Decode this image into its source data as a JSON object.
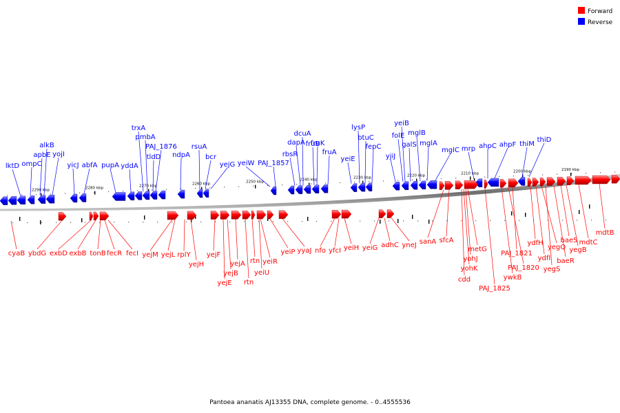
{
  "legend": {
    "forward": {
      "label": "Forward",
      "color": "#ff0000"
    },
    "reverse": {
      "label": "Reverse",
      "color": "#0000ff"
    }
  },
  "caption": "Pantoea ananatis AJ13355 DNA, complete genome. - 0..4555536",
  "ticks": [
    "2190 kbp",
    "2200 kbp",
    "2210 kbp",
    "2220 kbp",
    "2230 kbp",
    "2240 kbp",
    "2250 kbp",
    "2260 kbp",
    "2270 kbp",
    "2280 kbp",
    "2290 kbp"
  ],
  "reverse_genes": [
    "lktD",
    "ompC",
    "apbE",
    "alkB",
    "yojI",
    "yicJ",
    "abfA",
    "pupA",
    "yddA",
    "trxA",
    "pmbA",
    "tldD",
    "PAJ_1876",
    "ndpA",
    "rsuA",
    "bcr",
    "yejG",
    "yeiW",
    "PAJ_1857",
    "rbsR",
    "dapA",
    "dcuA",
    "fruB",
    "fruK",
    "fruA",
    "yeiE",
    "lysP",
    "btuC",
    "fepC",
    "yjiJ",
    "folE",
    "yeiB",
    "galS",
    "mglB",
    "mglA",
    "mglC",
    "mrp",
    "ahpC",
    "ahpF",
    "thiM",
    "thiD"
  ],
  "forward_genes": [
    "cyaB",
    "ybdG",
    "exbD",
    "exbB",
    "tonB",
    "fecR",
    "fecI",
    "yejM",
    "yejL",
    "rplY",
    "yejH",
    "yejF",
    "yejE",
    "yejB",
    "yejA",
    "rtn",
    "rtn",
    "yeiU",
    "yeiR",
    "yeiP",
    "yyaJ",
    "nfo",
    "yfcI",
    "yeiH",
    "yeiG",
    "adhC",
    "yneJ",
    "sanA",
    "sfcA",
    "cdd",
    "yohK",
    "yohJ",
    "metG",
    "PAJ_1825",
    "ywkB",
    "PAJ_1820",
    "PAJ_1821",
    "ydfH",
    "ydfI",
    "yegQ",
    "yegS",
    "baeR",
    "baeS",
    "yegB",
    "mdtC",
    "mdtB"
  ]
}
